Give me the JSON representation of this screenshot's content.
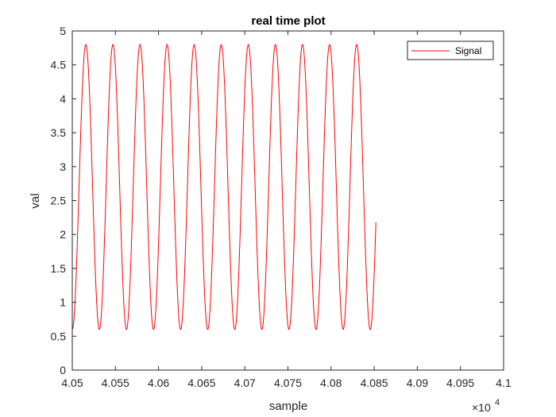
{
  "chart_data": {
    "type": "line",
    "title": "real time plot",
    "xlabel": "sample",
    "ylabel": "val",
    "xlim": [
      40500,
      41000
    ],
    "ylim": [
      0,
      5
    ],
    "x_exponent_label": "×10",
    "x_exponent_power": "4",
    "x_tick_labels": [
      "4.05",
      "4.055",
      "4.06",
      "4.065",
      "4.07",
      "4.075",
      "4.08",
      "4.085",
      "4.09",
      "4.095",
      "4.1"
    ],
    "y_tick_labels": [
      "0",
      "0.5",
      "1",
      "1.5",
      "2",
      "2.5",
      "3",
      "3.5",
      "4",
      "4.5",
      "5"
    ],
    "grid": false,
    "legend_position": "top-right",
    "series": [
      {
        "name": "Signal",
        "color": "#ff0000",
        "x_start": 40500,
        "x_end": 40852,
        "mean": 2.7,
        "amplitude": 2.1,
        "period": 31.4,
        "peak_at": 40515.7
      }
    ]
  },
  "colors": {
    "axis": "#262626",
    "background": "#ffffff"
  }
}
